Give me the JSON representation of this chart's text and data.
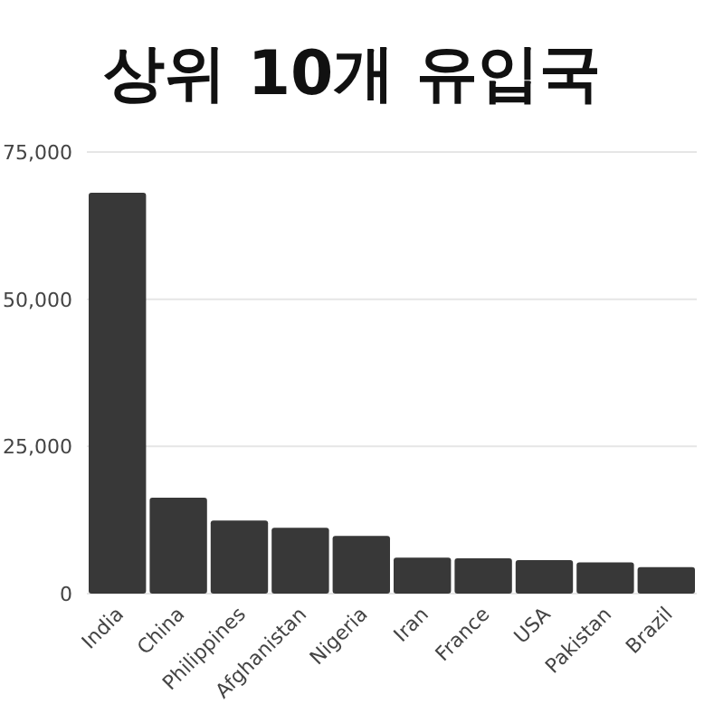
{
  "chart_data": {
    "type": "bar",
    "title": "상위 10개 유입국",
    "categories": [
      "India",
      "China",
      "Philippines",
      "Afghanistan",
      "Nigeria",
      "Iran",
      "France",
      "USA",
      "Pakistan",
      "Brazil"
    ],
    "values": [
      68100,
      16300,
      12400,
      11200,
      9800,
      6100,
      6000,
      5700,
      5300,
      4500
    ],
    "color": "#383838",
    "ylim": [
      0,
      75000
    ],
    "yticks": [
      {
        "value": 0,
        "label": "0"
      },
      {
        "value": 25000,
        "label": "25,000"
      },
      {
        "value": 50000,
        "label": "50,000"
      },
      {
        "value": 75000,
        "label": "75,000"
      }
    ],
    "grid": "y"
  }
}
